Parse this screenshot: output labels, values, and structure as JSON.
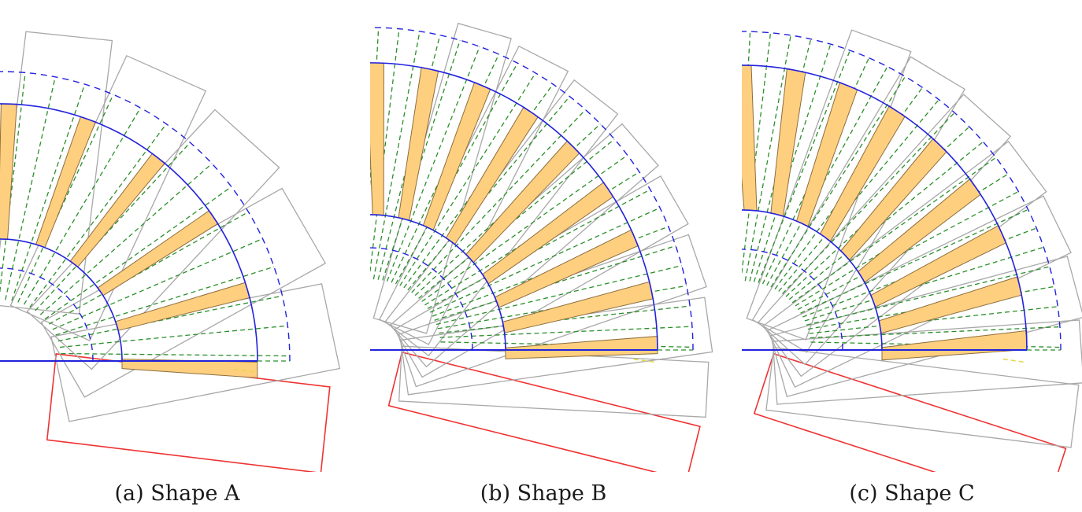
{
  "figure": {
    "panels": [
      {
        "caption": "(a) Shape A",
        "blade_count": 6,
        "shape": "A"
      },
      {
        "caption": "(b) Shape B",
        "blade_count": 9,
        "shape": "B"
      },
      {
        "caption": "(c) Shape C",
        "blade_count": 9,
        "shape": "C"
      }
    ],
    "colors": {
      "arc": "#2222dd",
      "guide": "#2a8f2a",
      "outline": "#a8a8a8",
      "highlight": "#ee3333",
      "blade_fill": "#ffcf80",
      "blade_stroke": "#8c6e3c",
      "accent": "#e8d84a"
    }
  }
}
